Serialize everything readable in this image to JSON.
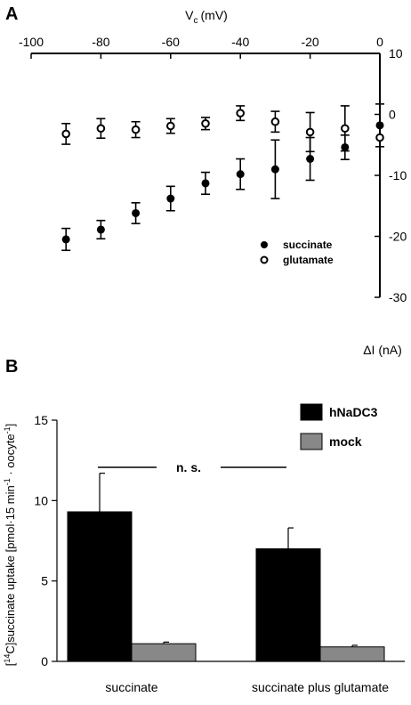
{
  "panels": [
    {
      "label": "A"
    },
    {
      "label": "B"
    }
  ],
  "chart_data": [
    {
      "type": "scatter",
      "panel": "A",
      "xlabel": "V",
      "xlabel_sub": "c",
      "xlabel_unit": "(mV)",
      "ylabel": "ΔI (nA)",
      "xlim": [
        -100,
        0
      ],
      "ylim": [
        -30,
        10
      ],
      "xticks": [
        -100,
        -80,
        -60,
        -40,
        -20,
        0
      ],
      "yticks": [
        10,
        0,
        -10,
        -20,
        -30
      ],
      "grid": false,
      "legend_position": "bottom-right",
      "series": [
        {
          "name": "succinate",
          "marker": "filled-circle",
          "x": [
            -90,
            -80,
            -70,
            -60,
            -50,
            -40,
            -30,
            -20,
            -10,
            0
          ],
          "y": [
            -20.5,
            -18.9,
            -16.2,
            -13.8,
            -11.3,
            -9.8,
            -9.0,
            -7.3,
            -5.4,
            -1.8
          ],
          "error": [
            1.8,
            1.5,
            1.7,
            2.0,
            1.8,
            2.5,
            4.8,
            3.5,
            2.0,
            3.5
          ]
        },
        {
          "name": "glutamate",
          "marker": "open-circle",
          "x": [
            -90,
            -80,
            -70,
            -60,
            -50,
            -40,
            -30,
            -20,
            -10,
            0
          ],
          "y": [
            -3.2,
            -2.3,
            -2.5,
            -1.9,
            -1.5,
            0.2,
            -1.2,
            -2.9,
            -2.3,
            -3.8
          ],
          "error": [
            1.7,
            1.6,
            1.3,
            1.2,
            1.0,
            1.2,
            1.7,
            3.2,
            3.7,
            0.0
          ]
        }
      ]
    },
    {
      "type": "bar",
      "panel": "B",
      "ylabel": "[14C]succinate uptake [pmol·15 min-1 · oocyte-1]",
      "ylabel_parts": {
        "pre": "[",
        "sup1": "14",
        "mid": "C]succinate uptake [pmol·15 min",
        "sup2": "-1",
        "mid2": " · oocyte",
        "sup3": "-1",
        "post": "]"
      },
      "categories": [
        "succinate",
        "succinate plus glutamate"
      ],
      "ylim": [
        0,
        15
      ],
      "yticks": [
        0,
        5,
        10,
        15
      ],
      "grid": false,
      "legend_position": "top-right",
      "significance": "n. s.",
      "series": [
        {
          "name": "hNaDC3",
          "color": "#000000",
          "values": [
            9.3,
            7.0
          ],
          "error": [
            2.4,
            1.3
          ]
        },
        {
          "name": "mock",
          "color": "#888888",
          "values": [
            1.1,
            0.9
          ],
          "error": [
            0.1,
            0.1
          ]
        }
      ]
    }
  ]
}
